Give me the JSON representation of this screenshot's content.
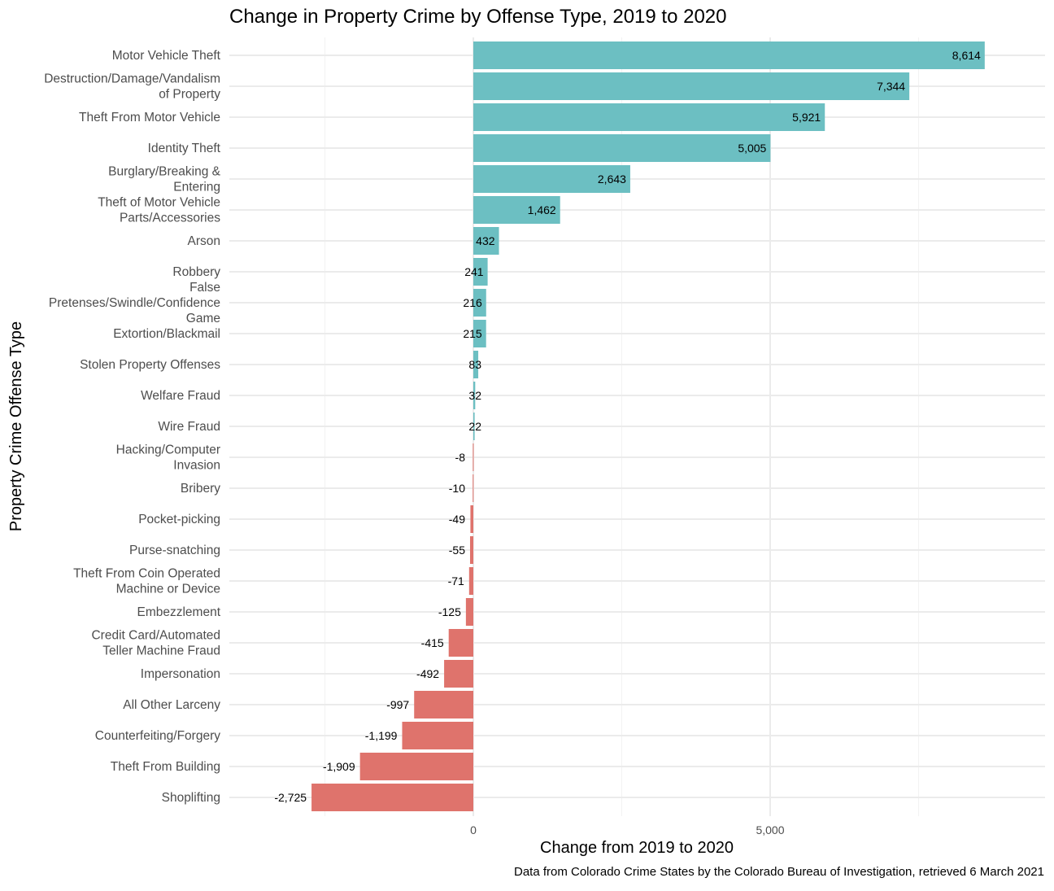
{
  "chart_data": {
    "type": "bar",
    "orientation": "horizontal",
    "title": "Change in Property Crime by Offense Type, 2019 to 2020",
    "xlabel": "Change from 2019 to 2020",
    "ylabel": "Property Crime Offense Type",
    "caption": "Data from Colorado Crime States by the Colorado Bureau of Investigation, retrieved 6 March 2021",
    "xlim": [
      -4300,
      9600
    ],
    "xticks": [
      0,
      5000
    ],
    "xtick_labels": [
      "0",
      "5,000"
    ],
    "grid": true,
    "legend": "none",
    "colors": {
      "positive": "#6cbfc2",
      "negative": "#df736c"
    },
    "categories": [
      [
        "Motor Vehicle Theft"
      ],
      [
        "Destruction/Damage/Vandalism",
        "of Property"
      ],
      [
        "Theft From Motor Vehicle"
      ],
      [
        "Identity Theft"
      ],
      [
        "Burglary/Breaking &",
        "Entering"
      ],
      [
        "Theft of Motor Vehicle",
        "Parts/Accessories"
      ],
      [
        "Arson"
      ],
      [
        "Robbery"
      ],
      [
        "False",
        "Pretenses/Swindle/Confidence",
        "Game"
      ],
      [
        "Extortion/Blackmail"
      ],
      [
        "Stolen Property Offenses"
      ],
      [
        "Welfare Fraud"
      ],
      [
        "Wire Fraud"
      ],
      [
        "Hacking/Computer",
        "Invasion"
      ],
      [
        "Bribery"
      ],
      [
        "Pocket-picking"
      ],
      [
        "Purse-snatching"
      ],
      [
        "Theft From Coin Operated",
        "Machine or Device"
      ],
      [
        "Embezzlement"
      ],
      [
        "Credit Card/Automated",
        "Teller Machine Fraud"
      ],
      [
        "Impersonation"
      ],
      [
        "All Other Larceny"
      ],
      [
        "Counterfeiting/Forgery"
      ],
      [
        "Theft From Building"
      ],
      [
        "Shoplifting"
      ]
    ],
    "values": [
      8614,
      7344,
      5921,
      5005,
      2643,
      1462,
      432,
      241,
      216,
      215,
      83,
      32,
      22,
      -8,
      -10,
      -49,
      -55,
      -71,
      -125,
      -415,
      -492,
      -997,
      -1199,
      -1909,
      -2725
    ],
    "value_labels": [
      "8,614",
      "7,344",
      "5,921",
      "5,005",
      "2,643",
      "1,462",
      "432",
      "241",
      "216",
      "215",
      "83",
      "32",
      "22",
      "-8",
      "-10",
      "-49",
      "-55",
      "-71",
      "-125",
      "-415",
      "-492",
      "-997",
      "-1,199",
      "-1,909",
      "-2,725"
    ]
  }
}
